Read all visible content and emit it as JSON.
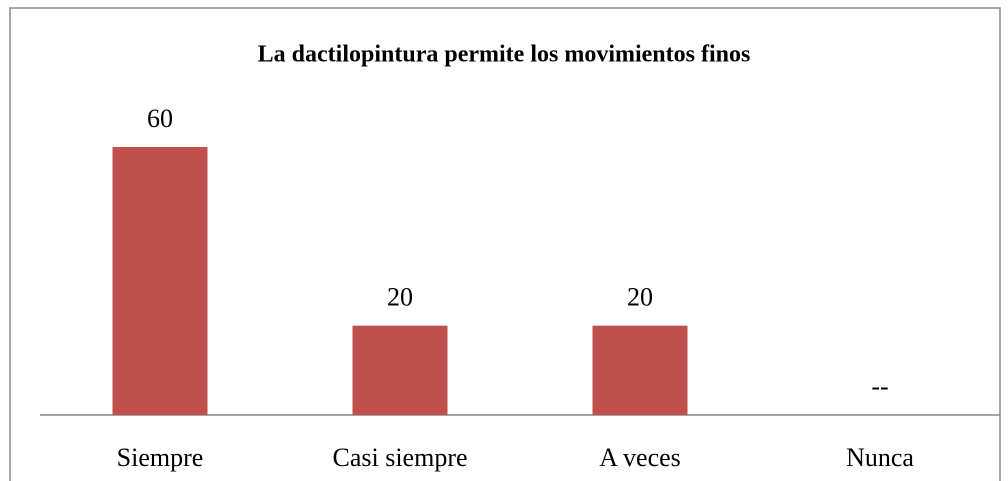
{
  "chart_data": {
    "type": "bar",
    "title": "La dactilopintura permite los movimientos finos",
    "categories": [
      "Siempre",
      "Casi siempre",
      "A veces",
      "Nunca"
    ],
    "values": [
      60,
      20,
      20,
      null
    ],
    "value_labels": [
      "60",
      "20",
      "20",
      "--"
    ],
    "color": "#c0504d"
  }
}
